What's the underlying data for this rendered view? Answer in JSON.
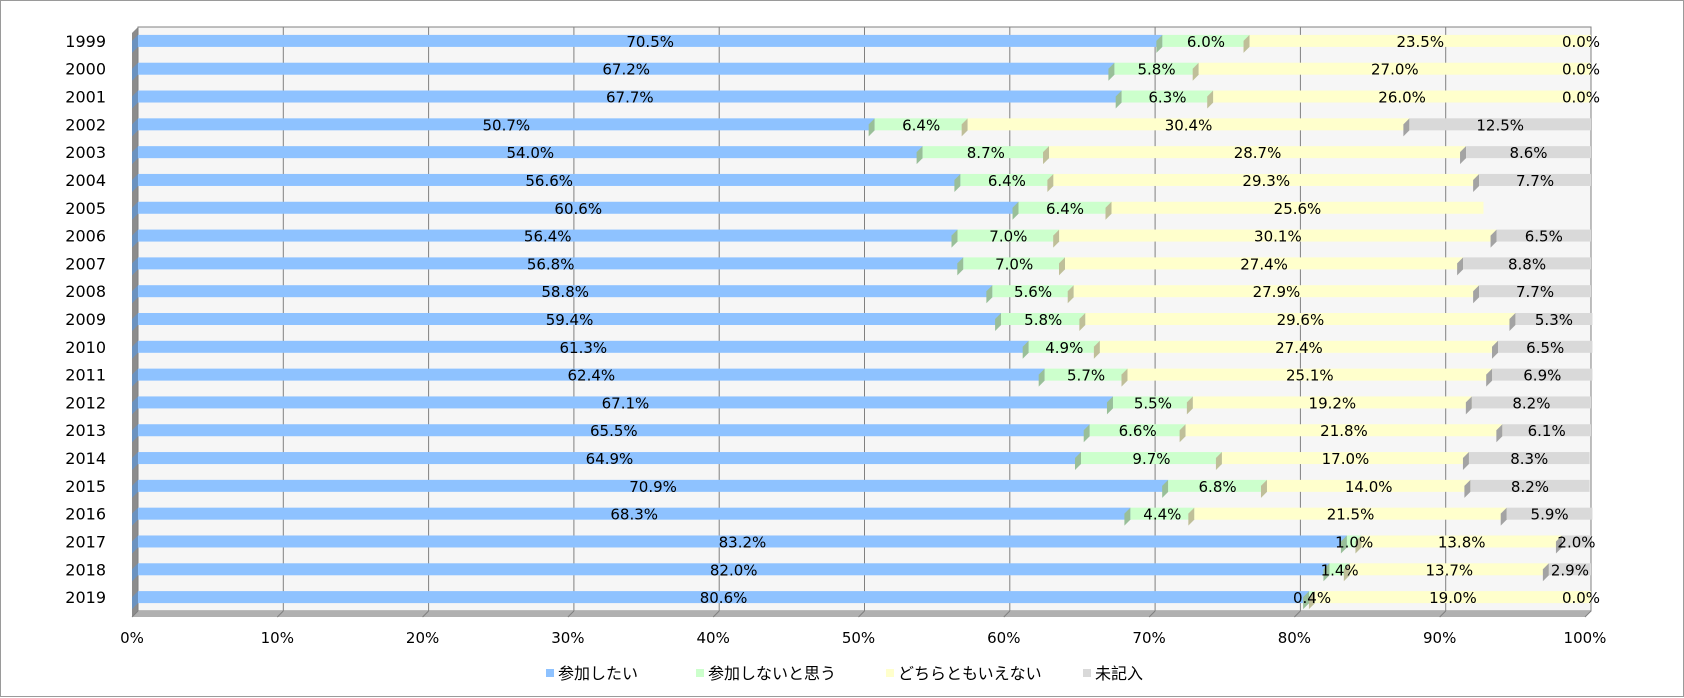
{
  "chart_data": {
    "type": "bar",
    "orientation": "horizontal",
    "stacked": "percent",
    "title": "",
    "categories": [
      "1999",
      "2000",
      "2001",
      "2002",
      "2003",
      "2004",
      "2005",
      "2006",
      "2007",
      "2008",
      "2009",
      "2010",
      "2011",
      "2012",
      "2013",
      "2014",
      "2015",
      "2016",
      "2017",
      "2018",
      "2019"
    ],
    "series": [
      {
        "name": "参加したい",
        "color": "#8ec2ff",
        "values": [
          70.5,
          67.2,
          67.7,
          50.7,
          54.0,
          56.6,
          60.6,
          56.4,
          56.8,
          58.8,
          59.4,
          61.3,
          62.4,
          67.1,
          65.5,
          64.9,
          70.9,
          68.3,
          83.2,
          82.0,
          80.6
        ]
      },
      {
        "name": "参加しないと思う",
        "color": "#ccffcc",
        "values": [
          6.0,
          5.8,
          6.3,
          6.4,
          8.7,
          6.4,
          6.4,
          7.0,
          7.0,
          5.6,
          5.8,
          4.9,
          5.7,
          5.5,
          6.6,
          9.7,
          6.8,
          4.4,
          1.0,
          1.4,
          0.4
        ]
      },
      {
        "name": "どちらともいえない",
        "color": "#ffffcc",
        "values": [
          23.5,
          27.0,
          26.0,
          30.4,
          28.7,
          29.3,
          25.6,
          30.1,
          27.4,
          27.9,
          29.6,
          27.4,
          25.1,
          19.2,
          21.8,
          17.0,
          14.0,
          21.5,
          13.8,
          13.7,
          19.0
        ]
      },
      {
        "name": "未記入",
        "color": "#d9d9d9",
        "values": [
          0.0,
          0.0,
          0.0,
          12.5,
          8.6,
          7.7,
          null,
          6.5,
          8.8,
          7.7,
          5.3,
          6.5,
          6.9,
          8.2,
          6.1,
          8.3,
          8.2,
          5.9,
          2.0,
          2.9,
          0.0
        ]
      }
    ],
    "value_labels": [
      [
        "70.5%",
        "6.0%",
        "23.5%",
        "0.0%"
      ],
      [
        "67.2%",
        "5.8%",
        "27.0%",
        "0.0%"
      ],
      [
        "67.7%",
        "6.3%",
        "26.0%",
        "0.0%"
      ],
      [
        "50.7%",
        "6.4%",
        "30.4%",
        "12.5%"
      ],
      [
        "54.0%",
        "8.7%",
        "28.7%",
        "8.6%"
      ],
      [
        "56.6%",
        "6.4%",
        "29.3%",
        "7.7%"
      ],
      [
        "60.6%",
        "6.4%",
        "25.6%",
        ""
      ],
      [
        "56.4%",
        "7.0%",
        "30.1%",
        "6.5%"
      ],
      [
        "56.8%",
        "7.0%",
        "27.4%",
        "8.8%"
      ],
      [
        "58.8%",
        "5.6%",
        "27.9%",
        "7.7%"
      ],
      [
        "59.4%",
        "5.8%",
        "29.6%",
        "5.3%"
      ],
      [
        "61.3%",
        "4.9%",
        "27.4%",
        "6.5%"
      ],
      [
        "62.4%",
        "5.7%",
        "25.1%",
        "6.9%"
      ],
      [
        "67.1%",
        "5.5%",
        "19.2%",
        "8.2%"
      ],
      [
        "65.5%",
        "6.6%",
        "21.8%",
        "6.1%"
      ],
      [
        "64.9%",
        "9.7%",
        "17.0%",
        "8.3%"
      ],
      [
        "70.9%",
        "6.8%",
        "14.0%",
        "8.2%"
      ],
      [
        "68.3%",
        "4.4%",
        "21.5%",
        "5.9%"
      ],
      [
        "83.2%",
        "1.0%",
        "13.8%",
        "2.0%"
      ],
      [
        "82.0%",
        "1.4%",
        "13.7%",
        "2.9%"
      ],
      [
        "80.6%",
        "0.4%",
        "19.0%",
        "0.0%"
      ]
    ],
    "x_ticks": [
      "0%",
      "10%",
      "20%",
      "30%",
      "40%",
      "50%",
      "60%",
      "70%",
      "80%",
      "90%",
      "100%"
    ],
    "xlim": [
      0,
      100
    ],
    "grid": true,
    "legend_position": "bottom",
    "xlabel": "",
    "ylabel": ""
  }
}
